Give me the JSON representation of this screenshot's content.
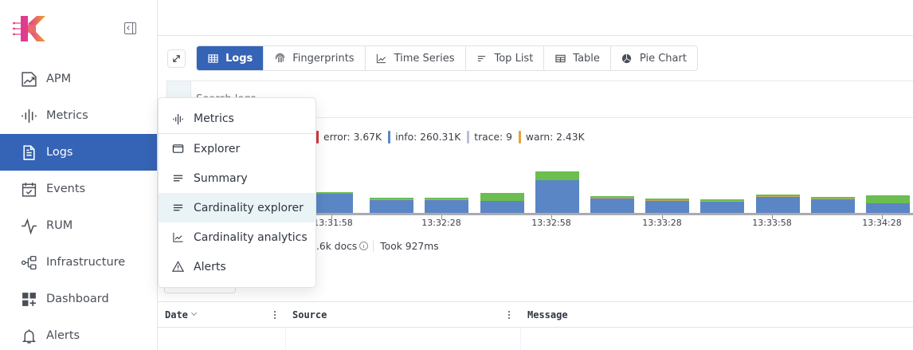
{
  "sidebar": {
    "collapse_button": "collapse-sidebar",
    "items": [
      {
        "label": "APM",
        "icon": "apm-chart-icon",
        "active": false
      },
      {
        "label": "Metrics",
        "icon": "waveform-icon",
        "active": false
      },
      {
        "label": "Logs",
        "icon": "document-icon",
        "active": true
      },
      {
        "label": "Events",
        "icon": "calendar-check-icon",
        "active": false
      },
      {
        "label": "RUM",
        "icon": "pulse-icon",
        "active": false
      },
      {
        "label": "Infrastructure",
        "icon": "hierarchy-icon",
        "active": false
      },
      {
        "label": "Dashboard",
        "icon": "dashboard-add-icon",
        "active": false
      },
      {
        "label": "Alerts",
        "icon": "bell-icon",
        "active": false
      }
    ]
  },
  "toolbar": {
    "tabs": [
      {
        "label": "Logs",
        "icon": "table-icon",
        "active": true
      },
      {
        "label": "Fingerprints",
        "icon": "fingerprint-icon",
        "active": false
      },
      {
        "label": "Time Series",
        "icon": "line-chart-icon",
        "active": false
      },
      {
        "label": "Top List",
        "icon": "sort-list-icon",
        "active": false
      },
      {
        "label": "Table",
        "icon": "table-icon",
        "active": false
      },
      {
        "label": "Pie Chart",
        "icon": "pie-chart-icon",
        "active": false
      }
    ]
  },
  "search": {
    "placeholder": "Search logs"
  },
  "legend": [
    {
      "label": "error: 3.67K",
      "color": "#d0393b"
    },
    {
      "label": "info: 260.31K",
      "color": "#5b86c5"
    },
    {
      "label": "trace: 9",
      "color": "#b8bfd9"
    },
    {
      "label": "warn: 2.43K",
      "color": "#e7a23a"
    }
  ],
  "chart_data": {
    "type": "bar",
    "stacked": true,
    "x_ticks": [
      "13:31:58",
      "13:32:28",
      "13:32:58",
      "13:33:28",
      "13:33:58",
      "13:34:28"
    ],
    "series": [
      {
        "name": "info",
        "color": "#5b86c5",
        "values": [
          24,
          16,
          16,
          15,
          41,
          18,
          15,
          14,
          20,
          17,
          12
        ]
      },
      {
        "name": "warn",
        "color": "#c9a55a",
        "values": [
          0,
          1,
          1,
          0,
          0,
          1,
          1,
          1,
          1,
          1,
          0
        ]
      },
      {
        "name": "error",
        "color": "#6bbe4f",
        "values": [
          1,
          1,
          1,
          10,
          11,
          1,
          1,
          1,
          1,
          1,
          10
        ]
      }
    ]
  },
  "stats": {
    "docs": ".6k docs",
    "took": "Took 927ms"
  },
  "table": {
    "columns": [
      {
        "label": "Date",
        "sortable": true
      },
      {
        "label": "Source",
        "sortable": false
      },
      {
        "label": "Message",
        "sortable": false
      }
    ]
  },
  "dropdown": {
    "items": [
      {
        "label": "Metrics",
        "icon": "waveform-icon"
      },
      {
        "label": "Explorer",
        "icon": "window-icon"
      },
      {
        "label": "Summary",
        "icon": "lines-icon"
      },
      {
        "label": "Cardinality explorer",
        "icon": "lines-icon",
        "hovered": true
      },
      {
        "label": "Cardinality analytics",
        "icon": "line-chart-icon"
      },
      {
        "label": "Alerts",
        "icon": "warning-icon"
      }
    ]
  }
}
